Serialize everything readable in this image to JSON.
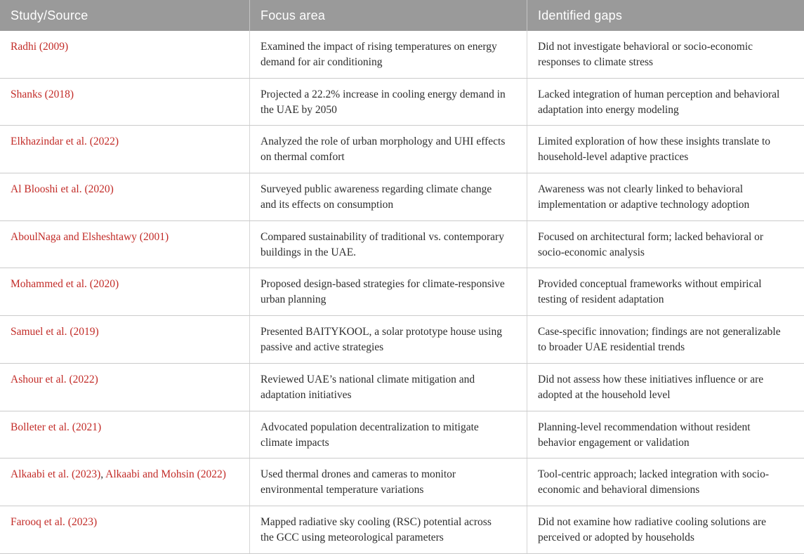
{
  "colors": {
    "header_background": "#9a9a9a",
    "header_text": "#ffffff",
    "citation_link": "#c22b27",
    "body_text": "#2d2d2d",
    "grid_line": "#cccccc"
  },
  "table": {
    "source_separator": ", ",
    "columns": [
      "Study/Source",
      "Focus area",
      "Identified gaps"
    ],
    "rows": [
      {
        "sources": [
          "Radhi (2009)"
        ],
        "focus": "Examined the impact of rising temperatures on energy demand for air conditioning",
        "gaps": "Did not investigate behavioral or socio-economic responses to climate stress"
      },
      {
        "sources": [
          "Shanks (2018)"
        ],
        "focus": "Projected a 22.2% increase in cooling energy demand in the UAE by 2050",
        "gaps": "Lacked integration of human perception and behavioral adaptation into energy modeling"
      },
      {
        "sources": [
          "Elkhazindar et al. (2022)"
        ],
        "focus": "Analyzed the role of urban morphology and UHI effects on thermal comfort",
        "gaps": "Limited exploration of how these insights translate to household-level adaptive practices"
      },
      {
        "sources": [
          "Al Blooshi et al. (2020)"
        ],
        "focus": "Surveyed public awareness regarding climate change and its effects on consumption",
        "gaps": "Awareness was not clearly linked to behavioral implementation or adaptive technology adoption"
      },
      {
        "sources": [
          "AboulNaga and Elsheshtawy (2001)"
        ],
        "focus": "Compared sustainability of traditional vs. contemporary buildings in the UAE.",
        "gaps": "Focused on architectural form; lacked behavioral or socio-economic analysis"
      },
      {
        "sources": [
          "Mohammed et al. (2020)"
        ],
        "focus": "Proposed design-based strategies for climate-responsive urban planning",
        "gaps": "Provided conceptual frameworks without empirical testing of resident adaptation"
      },
      {
        "sources": [
          "Samuel et al. (2019)"
        ],
        "focus": "Presented BAITYKOOL, a solar prototype house using passive and active strategies",
        "gaps": "Case-specific innovation; findings are not generalizable to broader UAE residential trends"
      },
      {
        "sources": [
          "Ashour et al. (2022)"
        ],
        "focus": "Reviewed UAE’s national climate mitigation and adaptation initiatives",
        "gaps": "Did not assess how these initiatives influence or are adopted at the household level"
      },
      {
        "sources": [
          "Bolleter et al. (2021)"
        ],
        "focus": "Advocated population decentralization to mitigate climate impacts",
        "gaps": "Planning-level recommendation without resident behavior engagement or validation"
      },
      {
        "sources": [
          "Alkaabi et al. (2023)",
          "Alkaabi and Mohsin (2022)"
        ],
        "focus": "Used thermal drones and cameras to monitor environmental temperature variations",
        "gaps": "Tool-centric approach; lacked integration with socio-economic and behavioral dimensions"
      },
      {
        "sources": [
          "Farooq et al. (2023)"
        ],
        "focus": "Mapped radiative sky cooling (RSC) potential across the GCC using meteorological parameters",
        "gaps": "Did not examine how radiative cooling solutions are perceived or adopted by households"
      }
    ]
  }
}
